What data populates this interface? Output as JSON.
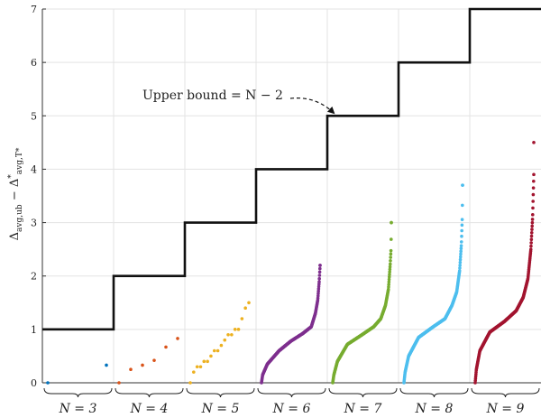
{
  "chart_data": {
    "type": "scatter",
    "title": "",
    "ylabel": "Δ_avg,ub − Δ*_avg,T*",
    "xlabel": "",
    "ylim": [
      0,
      7
    ],
    "yticks": [
      "0",
      "1",
      "2",
      "3",
      "4",
      "5",
      "6",
      "7"
    ],
    "grid": true,
    "groups": [
      "N = 3",
      "N = 4",
      "N = 5",
      "N = 6",
      "N = 7",
      "N = 8",
      "N = 9"
    ],
    "upper_bound": {
      "label": "Upper bound = N − 2",
      "values": [
        1,
        2,
        3,
        4,
        5,
        6,
        7
      ]
    },
    "series": [
      {
        "group": "N = 3",
        "color": "#0072BD",
        "points": [
          0.0,
          0.33
        ]
      },
      {
        "group": "N = 4",
        "color": "#D95319",
        "points": [
          0.0,
          0.25,
          0.33,
          0.42,
          0.67,
          0.83
        ]
      },
      {
        "group": "N = 5",
        "color": "#EDB120",
        "points": [
          0.0,
          0.2,
          0.3,
          0.3,
          0.4,
          0.4,
          0.5,
          0.6,
          0.6,
          0.7,
          0.8,
          0.9,
          0.9,
          1.0,
          1.0,
          1.2,
          1.4,
          1.5
        ]
      },
      {
        "group": "N = 6",
        "color": "#7E2F8E",
        "curve": [
          [
            0,
            0.0
          ],
          [
            0.02,
            0.15
          ],
          [
            0.1,
            0.35
          ],
          [
            0.3,
            0.6
          ],
          [
            0.5,
            0.78
          ],
          [
            0.7,
            0.92
          ],
          [
            0.85,
            1.05
          ],
          [
            0.92,
            1.3
          ],
          [
            0.96,
            1.55
          ],
          [
            0.985,
            1.9
          ],
          [
            1,
            2.2
          ]
        ]
      },
      {
        "group": "N = 7",
        "color": "#77AC30",
        "curve": [
          [
            0,
            0.0
          ],
          [
            0.02,
            0.15
          ],
          [
            0.08,
            0.4
          ],
          [
            0.25,
            0.72
          ],
          [
            0.5,
            0.9
          ],
          [
            0.7,
            1.05
          ],
          [
            0.82,
            1.2
          ],
          [
            0.9,
            1.45
          ],
          [
            0.95,
            1.75
          ],
          [
            0.98,
            2.2
          ],
          [
            0.995,
            2.5
          ],
          [
            1,
            3.0
          ]
        ]
      },
      {
        "group": "N = 8",
        "color": "#4DBEEE",
        "curve": [
          [
            0,
            0.0
          ],
          [
            0.02,
            0.2
          ],
          [
            0.08,
            0.5
          ],
          [
            0.25,
            0.85
          ],
          [
            0.5,
            1.05
          ],
          [
            0.7,
            1.2
          ],
          [
            0.82,
            1.45
          ],
          [
            0.9,
            1.7
          ],
          [
            0.95,
            2.1
          ],
          [
            0.98,
            2.6
          ],
          [
            0.995,
            3.1
          ],
          [
            1,
            3.7
          ]
        ]
      },
      {
        "group": "N = 9",
        "color": "#A2142F",
        "curve": [
          [
            0,
            0.0
          ],
          [
            0.02,
            0.25
          ],
          [
            0.08,
            0.6
          ],
          [
            0.25,
            0.95
          ],
          [
            0.5,
            1.15
          ],
          [
            0.7,
            1.35
          ],
          [
            0.82,
            1.6
          ],
          [
            0.9,
            1.95
          ],
          [
            0.95,
            2.5
          ],
          [
            0.98,
            3.1
          ],
          [
            0.995,
            3.7
          ],
          [
            1,
            3.9
          ],
          [
            1,
            4.5
          ]
        ]
      }
    ]
  }
}
